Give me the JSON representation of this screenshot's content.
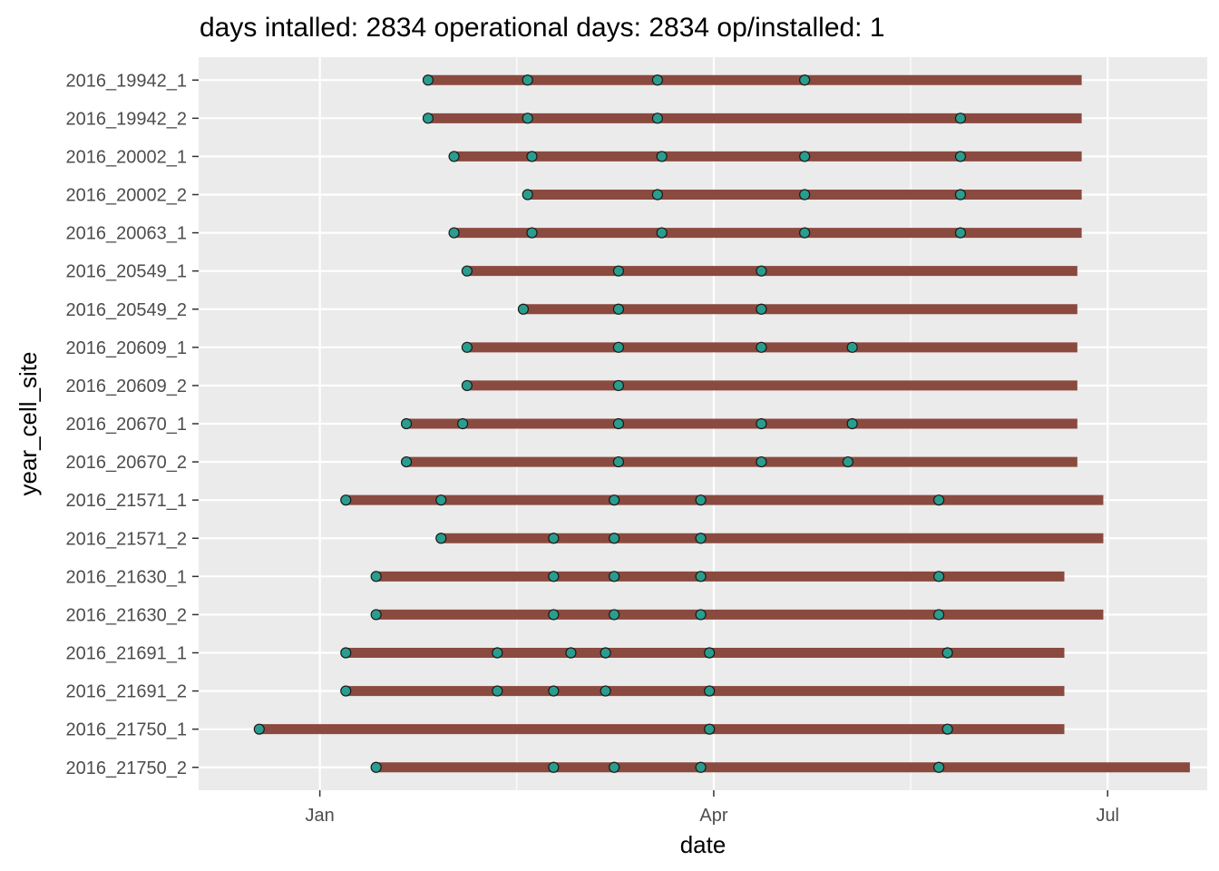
{
  "chart_data": {
    "type": "timeline",
    "title": "days intalled:  2834     operational days:  2834   op/installed:  1",
    "xlabel": "date",
    "ylabel": "year_cell_site",
    "x_ticks": [
      {
        "label": "Jan",
        "date": "2016-01-01"
      },
      {
        "label": "Apr",
        "date": "2016-04-01"
      },
      {
        "label": "Jul",
        "date": "2016-07-01"
      }
    ],
    "xlim": [
      "2015-12-04",
      "2016-07-24"
    ],
    "grid": true,
    "background": "#ebebeb",
    "bar_color": "#8b4a3f",
    "point_color": "#2a9d8f",
    "point_outline": "#1a1a1a",
    "rows": [
      {
        "label": "2016_21750_2",
        "start": "2016-01-14",
        "end": "2016-07-20",
        "points": [
          "2016-01-14",
          "2016-02-24",
          "2016-03-09",
          "2016-03-29",
          "2016-05-23"
        ]
      },
      {
        "label": "2016_21750_1",
        "start": "2015-12-18",
        "end": "2016-06-21",
        "points": [
          "2015-12-18",
          "2016-03-31",
          "2016-05-25"
        ]
      },
      {
        "label": "2016_21691_2",
        "start": "2016-01-07",
        "end": "2016-06-21",
        "points": [
          "2016-01-07",
          "2016-02-11",
          "2016-02-24",
          "2016-03-07",
          "2016-03-31"
        ]
      },
      {
        "label": "2016_21691_1",
        "start": "2016-01-07",
        "end": "2016-06-21",
        "points": [
          "2016-01-07",
          "2016-02-11",
          "2016-02-28",
          "2016-03-07",
          "2016-03-31",
          "2016-05-25"
        ]
      },
      {
        "label": "2016_21630_2",
        "start": "2016-01-14",
        "end": "2016-06-30",
        "points": [
          "2016-01-14",
          "2016-02-24",
          "2016-03-09",
          "2016-03-29",
          "2016-05-23"
        ]
      },
      {
        "label": "2016_21630_1",
        "start": "2016-01-14",
        "end": "2016-06-21",
        "points": [
          "2016-01-14",
          "2016-02-24",
          "2016-03-09",
          "2016-03-29",
          "2016-05-23"
        ]
      },
      {
        "label": "2016_21571_2",
        "start": "2016-01-29",
        "end": "2016-06-30",
        "points": [
          "2016-01-29",
          "2016-02-24",
          "2016-03-09",
          "2016-03-29"
        ]
      },
      {
        "label": "2016_21571_1",
        "start": "2016-01-07",
        "end": "2016-06-30",
        "points": [
          "2016-01-07",
          "2016-01-29",
          "2016-03-09",
          "2016-03-29",
          "2016-05-23"
        ]
      },
      {
        "label": "2016_20670_2",
        "start": "2016-01-21",
        "end": "2016-06-24",
        "points": [
          "2016-01-21",
          "2016-03-10",
          "2016-04-12",
          "2016-05-02"
        ]
      },
      {
        "label": "2016_20670_1",
        "start": "2016-01-21",
        "end": "2016-06-24",
        "points": [
          "2016-01-21",
          "2016-02-03",
          "2016-03-10",
          "2016-04-12",
          "2016-05-03"
        ]
      },
      {
        "label": "2016_20609_2",
        "start": "2016-02-04",
        "end": "2016-06-24",
        "points": [
          "2016-02-04",
          "2016-03-10"
        ]
      },
      {
        "label": "2016_20609_1",
        "start": "2016-02-04",
        "end": "2016-06-24",
        "points": [
          "2016-02-04",
          "2016-03-10",
          "2016-04-12",
          "2016-05-03"
        ]
      },
      {
        "label": "2016_20549_2",
        "start": "2016-02-17",
        "end": "2016-06-24",
        "points": [
          "2016-02-17",
          "2016-03-10",
          "2016-04-12"
        ]
      },
      {
        "label": "2016_20549_1",
        "start": "2016-02-04",
        "end": "2016-06-24",
        "points": [
          "2016-02-04",
          "2016-03-10",
          "2016-04-12"
        ]
      },
      {
        "label": "2016_20063_1",
        "start": "2016-02-01",
        "end": "2016-06-25",
        "points": [
          "2016-02-01",
          "2016-02-19",
          "2016-03-20",
          "2016-04-22",
          "2016-05-28"
        ]
      },
      {
        "label": "2016_20002_2",
        "start": "2016-02-18",
        "end": "2016-06-25",
        "points": [
          "2016-02-18",
          "2016-03-19",
          "2016-04-22",
          "2016-05-28"
        ]
      },
      {
        "label": "2016_20002_1",
        "start": "2016-02-01",
        "end": "2016-06-25",
        "points": [
          "2016-02-01",
          "2016-02-19",
          "2016-03-20",
          "2016-04-22",
          "2016-05-28"
        ]
      },
      {
        "label": "2016_19942_2",
        "start": "2016-01-26",
        "end": "2016-06-25",
        "points": [
          "2016-01-26",
          "2016-02-18",
          "2016-03-19",
          "2016-05-28"
        ]
      },
      {
        "label": "2016_19942_1",
        "start": "2016-01-26",
        "end": "2016-06-25",
        "points": [
          "2016-01-26",
          "2016-02-18",
          "2016-03-19",
          "2016-04-22"
        ]
      }
    ]
  }
}
